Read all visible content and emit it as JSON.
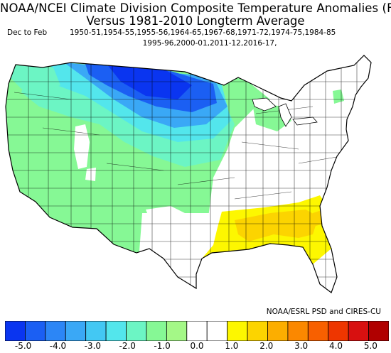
{
  "title_line1": "NOAA/NCEI Climate Division Composite Temperature Anomalies (F)",
  "title_line2": "Versus 1981-2010 Longterm Average",
  "season": "Dec to Feb",
  "years_line1": "1950-51,1954-55,1955-56,1964-65,1967-68,1971-72,1974-75,1984-85",
  "years_line2": "1995-96,2000-01,2011-12,2016-17,",
  "credit": "NOAA/ESRL PSD and CIRES-CU",
  "colorbar": {
    "colors": [
      "#0a35f0",
      "#1b5ff3",
      "#2c86f6",
      "#3aa8f6",
      "#43c8f3",
      "#53e6ec",
      "#6cf5c4",
      "#86f895",
      "#a4f887",
      "#ffffff",
      "#ffffff",
      "#fdf700",
      "#fcd400",
      "#fcae00",
      "#fb8800",
      "#f86000",
      "#ee3600",
      "#d81010",
      "#b00000"
    ],
    "ticks": [
      "-5.0",
      "-4.0",
      "-3.0",
      "-2.0",
      "-1.0",
      "0.0",
      "1.0",
      "2.0",
      "3.0",
      "4.0",
      "5.0"
    ]
  },
  "map_regions": {
    "strong_cold": "#1b5ff3",
    "cold": "#3aa8f6",
    "cool": "#53e6ec",
    "mild_cool": "#6cf5c4",
    "slight_cool": "#86f895",
    "neutral": "#ffffff",
    "warm": "#fdf700",
    "warmer": "#fcd400"
  }
}
